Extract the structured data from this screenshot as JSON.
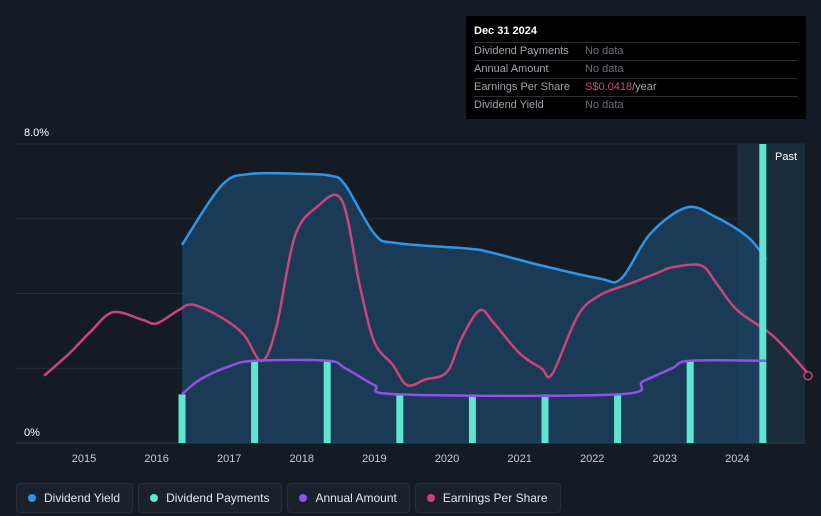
{
  "tooltip": {
    "date": "Dec 31 2024",
    "rows": [
      {
        "label": "Dividend Payments",
        "value": "No data"
      },
      {
        "label": "Annual Amount",
        "value": "No data"
      },
      {
        "label": "Earnings Per Share",
        "value_number": "S$0.0418",
        "value_unit": "/year"
      },
      {
        "label": "Dividend Yield",
        "value": "No data"
      }
    ]
  },
  "legend": [
    {
      "label": "Dividend Yield",
      "color": "#2f95e8"
    },
    {
      "label": "Dividend Payments",
      "color": "#5ee6d0"
    },
    {
      "label": "Annual Amount",
      "color": "#9250e8"
    },
    {
      "label": "Earnings Per Share",
      "color": "#c9457c"
    }
  ],
  "chart_data": {
    "type": "line",
    "title": "",
    "ylim": [
      0,
      8
    ],
    "y_tick_labels": [
      "8.0%",
      "0%"
    ],
    "x_tick_labels": [
      "2015",
      "2016",
      "2017",
      "2018",
      "2019",
      "2020",
      "2021",
      "2022",
      "2023",
      "2024"
    ],
    "x_range": [
      2014.5,
      2025.0
    ],
    "past_label": "Past",
    "past_start": 2024.0,
    "colors": {
      "dividend_yield": "#2f95e8",
      "dividend_payments": "#5ee6d0",
      "annual_amount": "#9250e8",
      "eps": "#c9457c"
    },
    "series": [
      {
        "name": "Dividend Yield",
        "unit": "%",
        "points": [
          [
            2016.35,
            5.3
          ],
          [
            2016.9,
            6.9
          ],
          [
            2017.3,
            7.2
          ],
          [
            2018.0,
            7.2
          ],
          [
            2018.4,
            7.15
          ],
          [
            2018.6,
            6.9
          ],
          [
            2019.0,
            5.6
          ],
          [
            2019.3,
            5.35
          ],
          [
            2020.3,
            5.2
          ],
          [
            2020.6,
            5.1
          ],
          [
            2021.3,
            4.75
          ],
          [
            2022.1,
            4.4
          ],
          [
            2022.4,
            4.4
          ],
          [
            2022.8,
            5.6
          ],
          [
            2023.3,
            6.3
          ],
          [
            2023.7,
            6.05
          ],
          [
            2024.15,
            5.5
          ],
          [
            2024.4,
            4.9
          ]
        ]
      },
      {
        "name": "Annual Amount",
        "unit": "%",
        "points": [
          [
            2016.35,
            1.3
          ],
          [
            2016.6,
            1.7
          ],
          [
            2017.0,
            2.05
          ],
          [
            2017.35,
            2.2
          ],
          [
            2018.35,
            2.2
          ],
          [
            2018.6,
            2.0
          ],
          [
            2019.0,
            1.55
          ],
          [
            2019.35,
            1.3
          ],
          [
            2022.35,
            1.3
          ],
          [
            2022.7,
            1.65
          ],
          [
            2023.1,
            2.0
          ],
          [
            2023.35,
            2.2
          ],
          [
            2024.4,
            2.2
          ]
        ]
      },
      {
        "name": "Dividend Payments",
        "unit": "%",
        "bars": [
          [
            2016.35,
            1.3
          ],
          [
            2017.35,
            2.2
          ],
          [
            2018.35,
            2.2
          ],
          [
            2019.35,
            1.3
          ],
          [
            2020.35,
            1.3
          ],
          [
            2021.35,
            1.3
          ],
          [
            2022.35,
            1.3
          ],
          [
            2023.35,
            2.2
          ],
          [
            2024.35,
            8.0
          ]
        ]
      },
      {
        "name": "Earnings Per Share",
        "unit": "scaled",
        "points": [
          [
            2014.45,
            1.8
          ],
          [
            2014.8,
            2.4
          ],
          [
            2015.1,
            3.0
          ],
          [
            2015.4,
            3.5
          ],
          [
            2015.8,
            3.3
          ],
          [
            2016.0,
            3.2
          ],
          [
            2016.3,
            3.55
          ],
          [
            2016.5,
            3.7
          ],
          [
            2016.9,
            3.35
          ],
          [
            2017.2,
            2.9
          ],
          [
            2017.45,
            2.2
          ],
          [
            2017.65,
            3.1
          ],
          [
            2017.9,
            5.5
          ],
          [
            2018.2,
            6.3
          ],
          [
            2018.55,
            6.5
          ],
          [
            2018.8,
            4.2
          ],
          [
            2019.0,
            2.7
          ],
          [
            2019.25,
            2.1
          ],
          [
            2019.45,
            1.55
          ],
          [
            2019.7,
            1.7
          ],
          [
            2020.0,
            1.9
          ],
          [
            2020.2,
            2.8
          ],
          [
            2020.45,
            3.55
          ],
          [
            2020.65,
            3.2
          ],
          [
            2021.0,
            2.4
          ],
          [
            2021.3,
            2.0
          ],
          [
            2021.45,
            1.85
          ],
          [
            2021.8,
            3.4
          ],
          [
            2022.1,
            3.95
          ],
          [
            2022.5,
            4.25
          ],
          [
            2022.9,
            4.55
          ],
          [
            2023.1,
            4.7
          ],
          [
            2023.5,
            4.75
          ],
          [
            2023.7,
            4.3
          ],
          [
            2024.0,
            3.55
          ],
          [
            2024.5,
            2.85
          ],
          [
            2025.0,
            1.8
          ]
        ]
      }
    ]
  }
}
